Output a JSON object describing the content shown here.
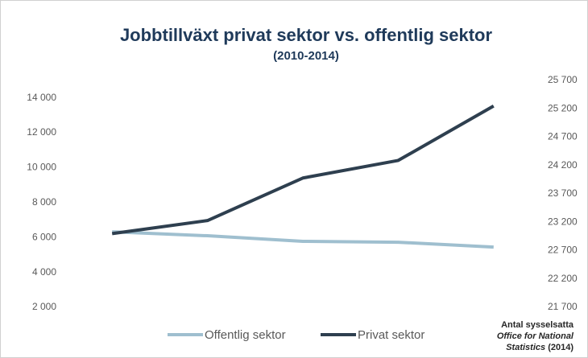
{
  "chart_data": {
    "type": "line",
    "title": "Jobbtillväxt privat sektor vs. offentlig sektor",
    "subtitle": "(2010-2014)",
    "categories": [
      null,
      null,
      null,
      null,
      null
    ],
    "series": [
      {
        "name": "Offentlig sektor",
        "color": "#9fbfcf",
        "axis": "y",
        "values": [
          6330,
          6100,
          5780,
          5730,
          5450
        ]
      },
      {
        "name": "Privat sektor",
        "color": "#2e3f4f",
        "axis": "y2",
        "values": [
          23000,
          23230,
          23980,
          24290,
          25250
        ]
      }
    ],
    "ylim": [
      1170,
      15000
    ],
    "yticks": [
      {
        "value": 2000,
        "label": "2 000"
      },
      {
        "value": 4000,
        "label": "4 000"
      },
      {
        "value": 6000,
        "label": "6 000"
      },
      {
        "value": 8000,
        "label": "8 000"
      },
      {
        "value": 10000,
        "label": "10 000"
      },
      {
        "value": 12000,
        "label": "12 000"
      },
      {
        "value": 14000,
        "label": "14 000"
      }
    ],
    "y2lim": [
      21445,
      25700
    ],
    "y2ticks": [
      {
        "value": 21700,
        "label": "21 700"
      },
      {
        "value": 22200,
        "label": "22 200"
      },
      {
        "value": 22700,
        "label": "22 700"
      },
      {
        "value": 23200,
        "label": "23 200"
      },
      {
        "value": 23700,
        "label": "23 700"
      },
      {
        "value": 24200,
        "label": "24 200"
      },
      {
        "value": 24700,
        "label": "24 700"
      },
      {
        "value": 25200,
        "label": "25 200"
      },
      {
        "value": 25700,
        "label": "25 700"
      }
    ],
    "note": [
      "Antal  sysselsatta",
      "Office for National",
      "Statistics",
      "(2014)"
    ],
    "legend": "bottom"
  }
}
